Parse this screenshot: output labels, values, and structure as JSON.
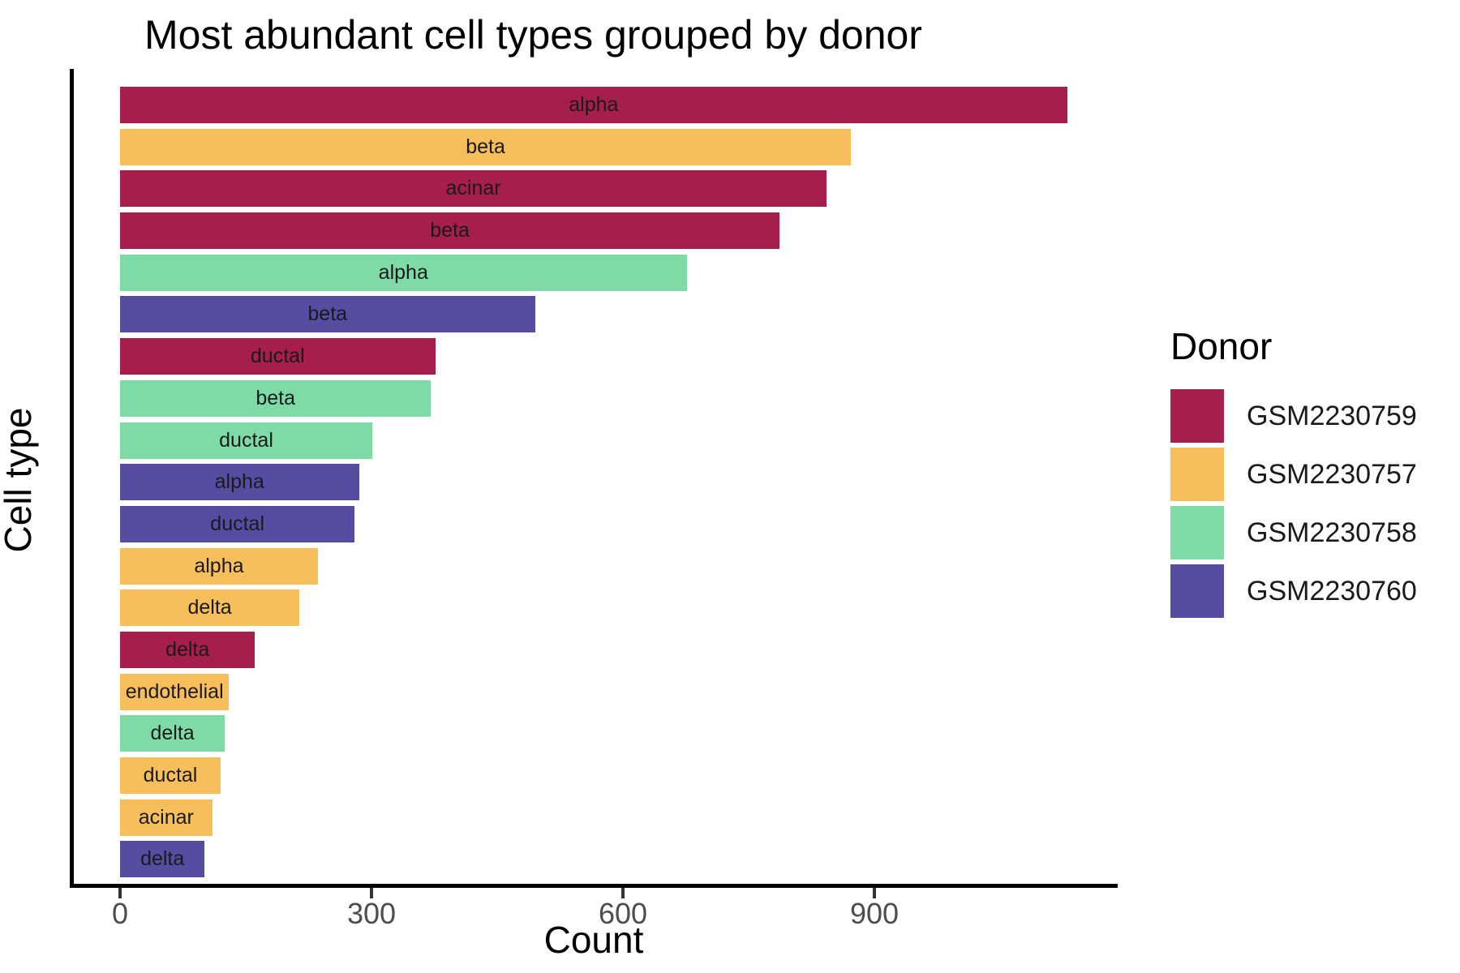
{
  "title": "Most abundant cell types grouped by donor",
  "axes": {
    "x_label": "Count",
    "y_label": "Cell type",
    "x_tick_labels": [
      "0",
      "300",
      "600",
      "900"
    ]
  },
  "legend": {
    "title": "Donor",
    "items": [
      {
        "label": "GSM2230759",
        "color": "#A61E4D"
      },
      {
        "label": "GSM2230757",
        "color": "#F7BE5C"
      },
      {
        "label": "GSM2230758",
        "color": "#7EDBA8"
      },
      {
        "label": "GSM2230760",
        "color": "#564CA2"
      }
    ]
  },
  "chart_data": {
    "type": "bar",
    "orientation": "horizontal",
    "title": "Most abundant cell types grouped by donor",
    "xlabel": "Count",
    "ylabel": "Cell type",
    "x_ticks": [
      0,
      300,
      600,
      900
    ],
    "xlim": [
      0,
      1190
    ],
    "grid": false,
    "legend_position": "right",
    "legend_title": "Donor",
    "series_colors": {
      "GSM2230759": "#A61E4D",
      "GSM2230757": "#F7BE5C",
      "GSM2230758": "#7EDBA8",
      "GSM2230760": "#564CA2"
    },
    "bars": [
      {
        "cell_type": "alpha",
        "donor": "GSM2230759",
        "count": 1130
      },
      {
        "cell_type": "beta",
        "donor": "GSM2230757",
        "count": 872
      },
      {
        "cell_type": "acinar",
        "donor": "GSM2230759",
        "count": 843
      },
      {
        "cell_type": "beta",
        "donor": "GSM2230759",
        "count": 787
      },
      {
        "cell_type": "alpha",
        "donor": "GSM2230758",
        "count": 676
      },
      {
        "cell_type": "beta",
        "donor": "GSM2230760",
        "count": 495
      },
      {
        "cell_type": "ductal",
        "donor": "GSM2230759",
        "count": 376
      },
      {
        "cell_type": "beta",
        "donor": "GSM2230758",
        "count": 371
      },
      {
        "cell_type": "ductal",
        "donor": "GSM2230758",
        "count": 301
      },
      {
        "cell_type": "alpha",
        "donor": "GSM2230760",
        "count": 285
      },
      {
        "cell_type": "ductal",
        "donor": "GSM2230760",
        "count": 280
      },
      {
        "cell_type": "alpha",
        "donor": "GSM2230757",
        "count": 236
      },
      {
        "cell_type": "delta",
        "donor": "GSM2230757",
        "count": 214
      },
      {
        "cell_type": "delta",
        "donor": "GSM2230759",
        "count": 161
      },
      {
        "cell_type": "endothelial",
        "donor": "GSM2230757",
        "count": 130
      },
      {
        "cell_type": "delta",
        "donor": "GSM2230758",
        "count": 125
      },
      {
        "cell_type": "ductal",
        "donor": "GSM2230757",
        "count": 120
      },
      {
        "cell_type": "acinar",
        "donor": "GSM2230757",
        "count": 110
      },
      {
        "cell_type": "delta",
        "donor": "GSM2230760",
        "count": 101
      }
    ]
  }
}
